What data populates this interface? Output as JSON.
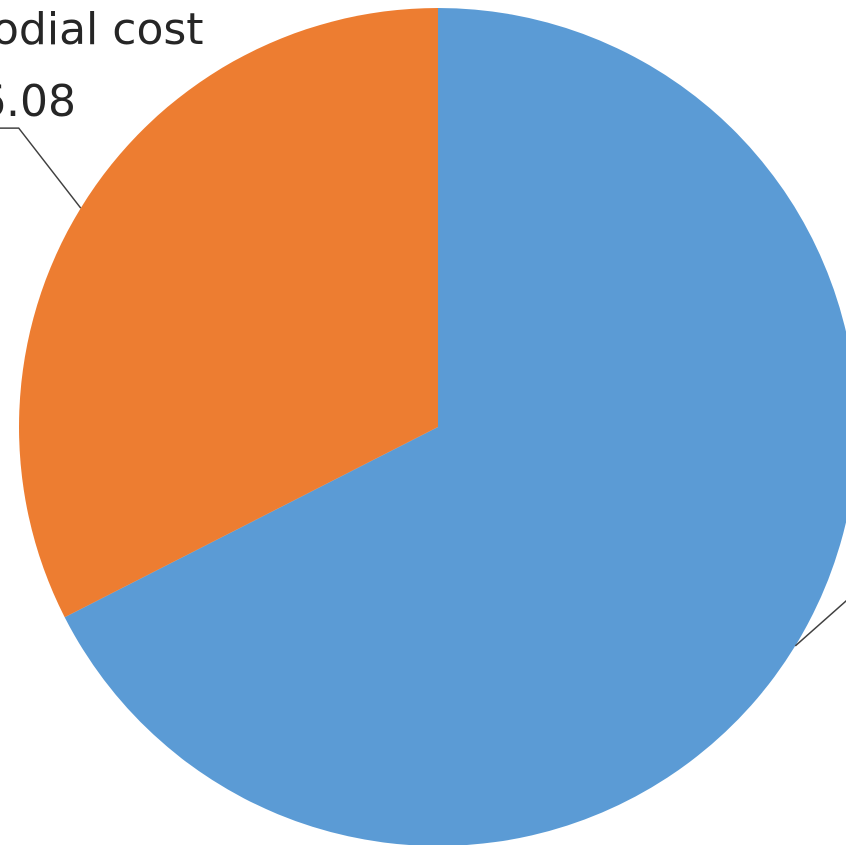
{
  "chart_data": {
    "type": "pie",
    "slices": [
      {
        "label_lines": [
          "",
          ""
        ],
        "percent": 67.5,
        "color": "#5b9bd5"
      },
      {
        "label_lines": [
          "odial cost",
          "6.08"
        ],
        "percent": 32.5,
        "color": "#ed7d31"
      }
    ],
    "start_angle_deg": 0,
    "direction": "clockwise",
    "legend": "none"
  }
}
